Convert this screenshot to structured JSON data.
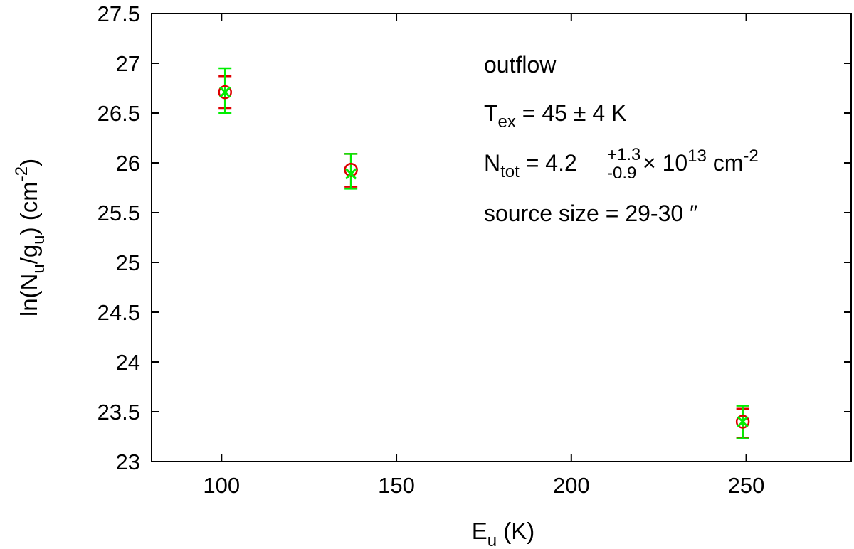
{
  "chart_data": {
    "type": "scatter",
    "xlabel": {
      "main": "E",
      "sub": "u",
      "unit": " (K)"
    },
    "ylabel": {
      "p1": "ln(N",
      "sub1": "u",
      "p2": "/g",
      "sub2": "u",
      "p3": ") (cm",
      "sup": "-2",
      "p4": ")"
    },
    "xlim": [
      80,
      280
    ],
    "ylim": [
      23,
      27.5
    ],
    "xticks": [
      100,
      150,
      200,
      250
    ],
    "yticks": [
      "23",
      "23.5",
      "24",
      "24.5",
      "25",
      "25.5",
      "26",
      "26.5",
      "27",
      "27.5"
    ],
    "grid": false,
    "series": [
      {
        "marker": "circle",
        "color": "#dd0000",
        "points": [
          {
            "x": 101,
            "y": 26.71,
            "yerr_low": 26.55,
            "yerr_high": 26.87
          },
          {
            "x": 137,
            "y": 25.93,
            "yerr_low": 25.76,
            "yerr_high": 26.09
          },
          {
            "x": 249,
            "y": 23.4,
            "yerr_low": 23.24,
            "yerr_high": 23.53
          }
        ]
      },
      {
        "marker": "cross",
        "color": "#00ee00",
        "points": [
          {
            "x": 101,
            "y": 26.71,
            "yerr_low": 26.5,
            "yerr_high": 26.95
          },
          {
            "x": 137,
            "y": 25.89,
            "yerr_low": 25.74,
            "yerr_high": 26.09
          },
          {
            "x": 249,
            "y": 23.4,
            "yerr_low": 23.23,
            "yerr_high": 23.56
          }
        ]
      }
    ],
    "annotations": {
      "line1": "outflow",
      "tex": {
        "symbol": "T",
        "sub": "ex",
        "rest": " = 45 ± 4 K"
      },
      "ntot": {
        "symbol": "N",
        "sub": "tot",
        "eq": " = 4.2",
        "sup": "+1.3",
        "subval": "-0.9",
        "times": "× 10",
        "exp": "13",
        "unit": " cm",
        "unitexp": "-2"
      },
      "line4": "source size = 29-30 ″"
    }
  }
}
